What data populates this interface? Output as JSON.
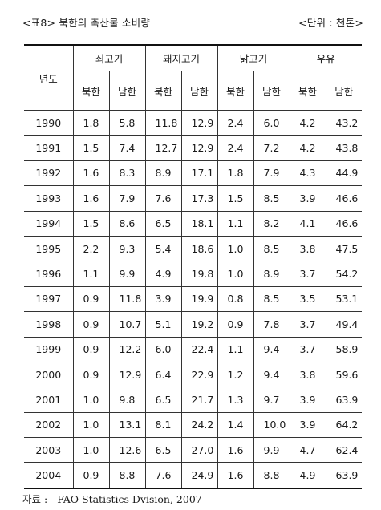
{
  "caption": {
    "title": "<표8> 북한의 축산물 소비량",
    "unit": "<단위 : 천톤>"
  },
  "table": {
    "year_header": "년도",
    "groups": [
      "쇠고기",
      "돼지고기",
      "닭고기",
      "우유"
    ],
    "sub_headers": [
      "북한",
      "남한",
      "북한",
      "남한",
      "북한",
      "남한",
      "북한",
      "남한"
    ],
    "rows": [
      [
        "1990",
        "1.8",
        "5.8",
        "11.8",
        "12.9",
        "2.4",
        "6.0",
        "4.2",
        "43.2"
      ],
      [
        "1991",
        "1.5",
        "7.4",
        "12.7",
        "12.9",
        "2.4",
        "7.2",
        "4.2",
        "43.8"
      ],
      [
        "1992",
        "1.6",
        "8.3",
        "8.9",
        "17.1",
        "1.8",
        "7.9",
        "4.3",
        "44.9"
      ],
      [
        "1993",
        "1.6",
        "7.9",
        "7.6",
        "17.3",
        "1.5",
        "8.5",
        "3.9",
        "46.6"
      ],
      [
        "1994",
        "1.5",
        "8.6",
        "6.5",
        "18.1",
        "1.1",
        "8.2",
        "4.1",
        "46.6"
      ],
      [
        "1995",
        "2.2",
        "9.3",
        "5.4",
        "18.6",
        "1.0",
        "8.5",
        "3.8",
        "47.5"
      ],
      [
        "1996",
        "1.1",
        "9.9",
        "4.9",
        "19.8",
        "1.0",
        "8.9",
        "3.7",
        "54.2"
      ],
      [
        "1997",
        "0.9",
        "11.8",
        "3.9",
        "19.9",
        "0.8",
        "8.5",
        "3.5",
        "53.1"
      ],
      [
        "1998",
        "0.9",
        "10.7",
        "5.1",
        "19.2",
        "0.9",
        "7.8",
        "3.7",
        "49.4"
      ],
      [
        "1999",
        "0.9",
        "12.2",
        "6.0",
        "22.4",
        "1.1",
        "9.4",
        "3.7",
        "58.9"
      ],
      [
        "2000",
        "0.9",
        "12.9",
        "6.4",
        "22.9",
        "1.2",
        "9.4",
        "3.8",
        "59.6"
      ],
      [
        "2001",
        "1.0",
        "9.8",
        "6.5",
        "21.7",
        "1.3",
        "9.7",
        "3.9",
        "63.9"
      ],
      [
        "2002",
        "1.0",
        "13.1",
        "8.1",
        "24.2",
        "1.4",
        "10.0",
        "3.9",
        "64.2"
      ],
      [
        "2003",
        "1.0",
        "12.6",
        "6.5",
        "27.0",
        "1.6",
        "9.9",
        "4.7",
        "62.4"
      ],
      [
        "2004",
        "0.9",
        "8.8",
        "7.6",
        "24.9",
        "1.6",
        "8.8",
        "4.9",
        "63.9"
      ]
    ]
  },
  "source": {
    "label": "자료 :",
    "text": "FAO Statistics Dvision, 2007"
  }
}
